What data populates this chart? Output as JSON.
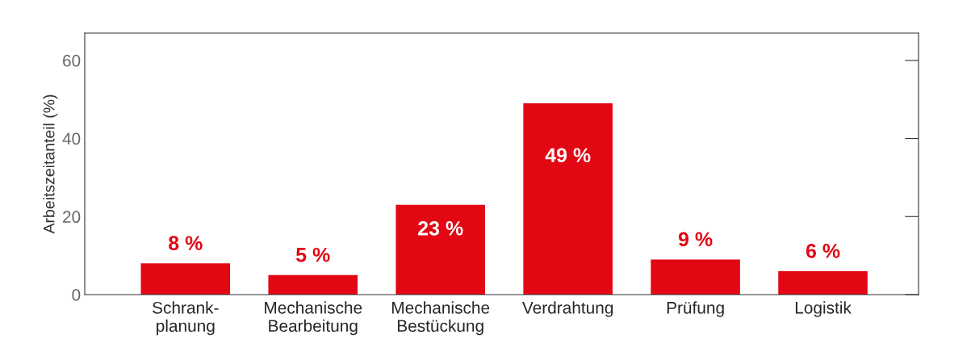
{
  "chart_data": {
    "type": "bar",
    "ylabel": "Arbeitszeitanteil (%)",
    "categories": [
      "Schrank-\nplanung",
      "Mechanische\nBearbeitung",
      "Mechanische\nBestückung",
      "Verdrahtung",
      "Prüfung",
      "Logistik"
    ],
    "values": [
      8,
      5,
      23,
      49,
      9,
      6
    ],
    "value_labels": [
      "8 %",
      "5 %",
      "23 %",
      "49 %",
      "9 %",
      "6 %"
    ],
    "color": "#e30613",
    "ylim": [
      0,
      67
    ],
    "yticks": [
      0,
      20,
      40,
      60
    ],
    "grid": false
  }
}
